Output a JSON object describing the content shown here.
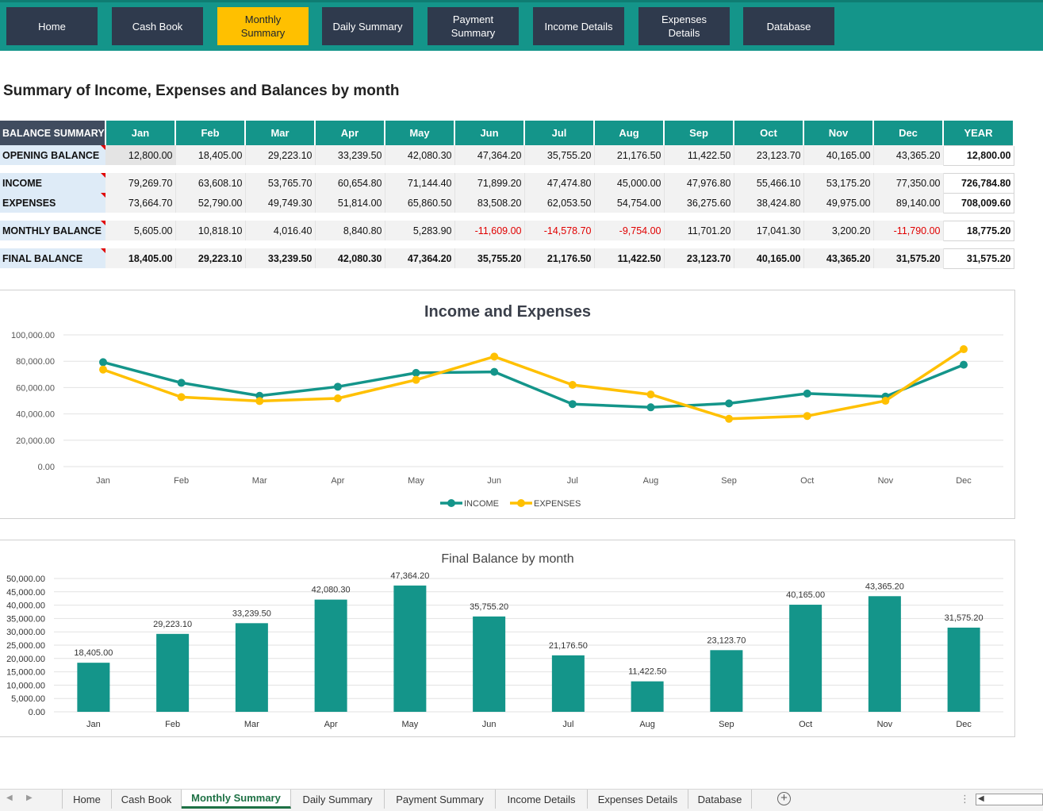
{
  "nav": [
    {
      "label": "Home",
      "active": false
    },
    {
      "label": "Cash Book",
      "active": false
    },
    {
      "label": "Monthly\nSummary",
      "active": true
    },
    {
      "label": "Daily Summary",
      "active": false
    },
    {
      "label": "Payment\nSummary",
      "active": false
    },
    {
      "label": "Income Details",
      "active": false
    },
    {
      "label": "Expenses\nDetails",
      "active": false
    },
    {
      "label": "Database",
      "active": false
    }
  ],
  "page_title": "Summary of Income, Expenses and Balances by month",
  "table": {
    "header_label": "BALANCE SUMMARY",
    "months": [
      "Jan",
      "Feb",
      "Mar",
      "Apr",
      "May",
      "Jun",
      "Jul",
      "Aug",
      "Sep",
      "Oct",
      "Nov",
      "Dec"
    ],
    "year_label": "YEAR",
    "rows": {
      "opening": {
        "label": "OPENING BALANCE",
        "values": [
          "12,800.00",
          "18,405.00",
          "29,223.10",
          "33,239.50",
          "42,080.30",
          "47,364.20",
          "35,755.20",
          "21,176.50",
          "11,422.50",
          "23,123.70",
          "40,165.00",
          "43,365.20"
        ],
        "year": "12,800.00"
      },
      "income": {
        "label": "INCOME",
        "values": [
          "79,269.70",
          "63,608.10",
          "53,765.70",
          "60,654.80",
          "71,144.40",
          "71,899.20",
          "47,474.80",
          "45,000.00",
          "47,976.80",
          "55,466.10",
          "53,175.20",
          "77,350.00"
        ],
        "year": "726,784.80"
      },
      "expenses": {
        "label": "EXPENSES",
        "values": [
          "73,664.70",
          "52,790.00",
          "49,749.30",
          "51,814.00",
          "65,860.50",
          "83,508.20",
          "62,053.50",
          "54,754.00",
          "36,275.60",
          "38,424.80",
          "49,975.00",
          "89,140.00"
        ],
        "year": "708,009.60"
      },
      "monthly": {
        "label": "MONTHLY BALANCE",
        "values": [
          "5,605.00",
          "10,818.10",
          "4,016.40",
          "8,840.80",
          "5,283.90",
          "-11,609.00",
          "-14,578.70",
          "-9,754.00",
          "11,701.20",
          "17,041.30",
          "3,200.20",
          "-11,790.00"
        ],
        "year": "18,775.20"
      },
      "final": {
        "label": "FINAL BALANCE",
        "values": [
          "18,405.00",
          "29,223.10",
          "33,239.50",
          "42,080.30",
          "47,364.20",
          "35,755.20",
          "21,176.50",
          "11,422.50",
          "23,123.70",
          "40,165.00",
          "43,365.20",
          "31,575.20"
        ],
        "year": "31,575.20"
      }
    },
    "negative_color": "#e00000"
  },
  "chart_data": [
    {
      "type": "line",
      "title": "Income and Expenses",
      "categories": [
        "Jan",
        "Feb",
        "Mar",
        "Apr",
        "May",
        "Jun",
        "Jul",
        "Aug",
        "Sep",
        "Oct",
        "Nov",
        "Dec"
      ],
      "series": [
        {
          "name": "INCOME",
          "color": "#14958a",
          "values": [
            79269.7,
            63608.1,
            53765.7,
            60654.8,
            71144.4,
            71899.2,
            47474.8,
            45000.0,
            47976.8,
            55466.1,
            53175.2,
            77350.0
          ]
        },
        {
          "name": "EXPENSES",
          "color": "#ffc000",
          "values": [
            73664.7,
            52790.0,
            49749.3,
            51814.0,
            65860.5,
            83508.2,
            62053.5,
            54754.0,
            36275.6,
            38424.8,
            49975.0,
            89140.0
          ]
        }
      ],
      "ylim": [
        0,
        100000
      ],
      "yticks": [
        "0.00",
        "20,000.00",
        "40,000.00",
        "60,000.00",
        "80,000.00",
        "100,000.00"
      ],
      "xlabel": "",
      "ylabel": "",
      "legend": "bottom",
      "grid": true
    },
    {
      "type": "bar",
      "title": "Final Balance by month",
      "categories": [
        "Jan",
        "Feb",
        "Mar",
        "Apr",
        "May",
        "Jun",
        "Jul",
        "Aug",
        "Sep",
        "Oct",
        "Nov",
        "Dec"
      ],
      "values": [
        18405.0,
        29223.1,
        33239.5,
        42080.3,
        47364.2,
        35755.2,
        21176.5,
        11422.5,
        23123.7,
        40165.0,
        43365.2,
        31575.2
      ],
      "data_labels": [
        "18,405.00",
        "29,223.10",
        "33,239.50",
        "42,080.30",
        "47,364.20",
        "35,755.20",
        "21,176.50",
        "11,422.50",
        "23,123.70",
        "40,165.00",
        "43,365.20",
        "31,575.20"
      ],
      "color": "#14958a",
      "ylim": [
        0,
        50000
      ],
      "yticks": [
        "0.00",
        "5,000.00",
        "10,000.00",
        "15,000.00",
        "20,000.00",
        "25,000.00",
        "30,000.00",
        "35,000.00",
        "40,000.00",
        "45,000.00",
        "50,000.00"
      ],
      "xlabel": "",
      "ylabel": "",
      "grid": true
    }
  ],
  "sheet_tabs": [
    {
      "label": "Home",
      "active": false
    },
    {
      "label": "Cash Book",
      "active": false
    },
    {
      "label": "Monthly Summary",
      "active": true
    },
    {
      "label": "Daily Summary",
      "active": false
    },
    {
      "label": "Payment Summary",
      "active": false
    },
    {
      "label": "Income Details",
      "active": false
    },
    {
      "label": "Expenses Details",
      "active": false
    },
    {
      "label": "Database",
      "active": false
    }
  ],
  "icons": {
    "prev": "caret-left-icon",
    "next": "caret-right-icon",
    "add": "plus-circle-icon",
    "options": "vertical-ellipsis-icon"
  }
}
